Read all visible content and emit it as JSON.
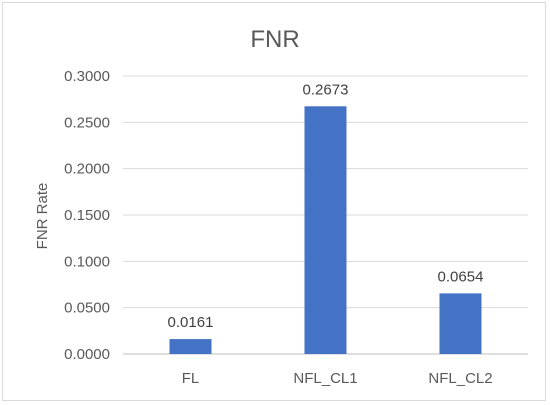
{
  "chart_data": {
    "type": "bar",
    "title": "FNR",
    "xlabel": "",
    "ylabel": "FNR Rate",
    "categories": [
      "FL",
      "NFL_CL1",
      "NFL_CL2"
    ],
    "values": [
      0.0161,
      0.2673,
      0.0654
    ],
    "data_labels": [
      "0.0161",
      "0.2673",
      "0.0654"
    ],
    "ylim": [
      0,
      0.3
    ],
    "yticks": [
      "0.0000",
      "0.0500",
      "0.1000",
      "0.1500",
      "0.2000",
      "0.2500",
      "0.3000"
    ],
    "grid": true,
    "bar_color": "#4472C4"
  }
}
